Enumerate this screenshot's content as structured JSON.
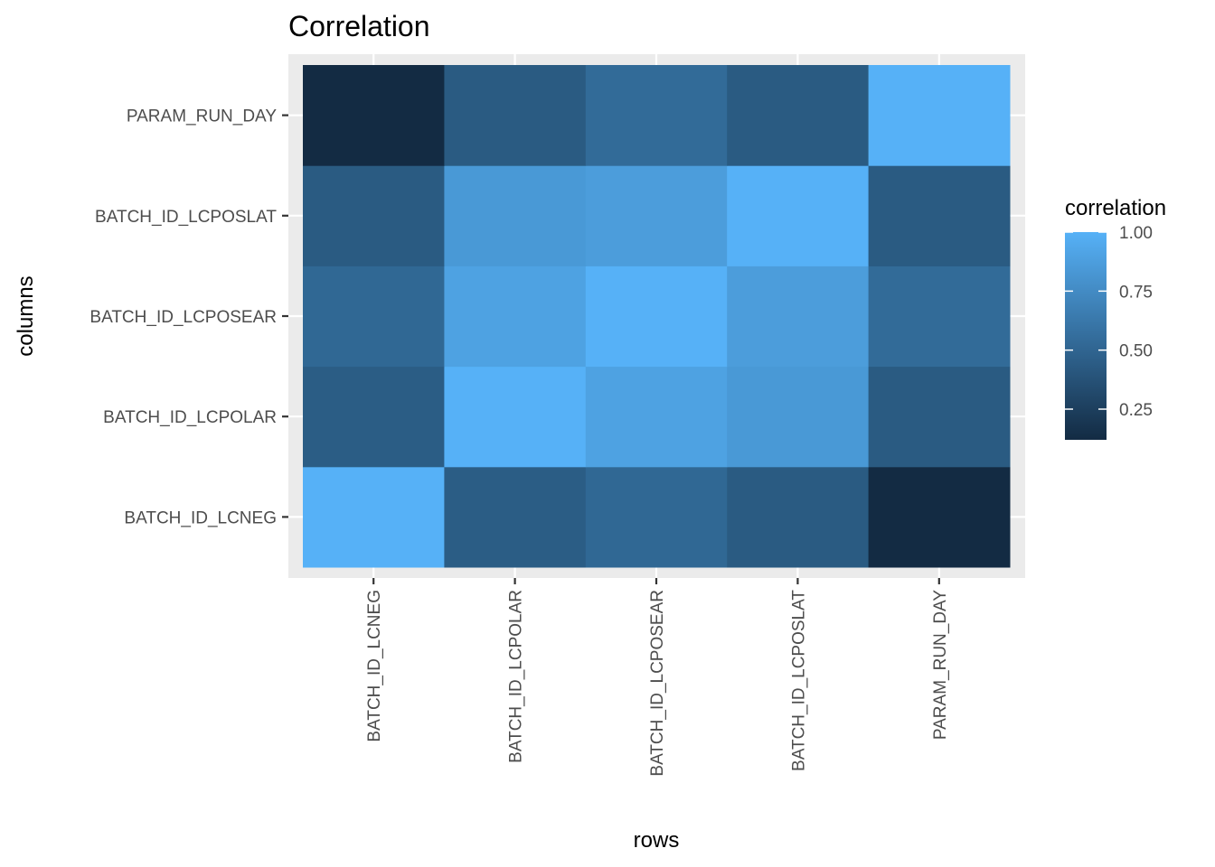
{
  "chart_data": {
    "type": "heatmap",
    "title": "Correlation",
    "xlabel": "rows",
    "ylabel": "columns",
    "x_categories": [
      "BATCH_ID_LCNEG",
      "BATCH_ID_LCPOLAR",
      "BATCH_ID_LCPOSEAR",
      "BATCH_ID_LCPOSLAT",
      "PARAM_RUN_DAY"
    ],
    "y_categories": [
      "BATCH_ID_LCNEG",
      "BATCH_ID_LCPOLAR",
      "BATCH_ID_LCPOSEAR",
      "BATCH_ID_LCPOSLAT",
      "PARAM_RUN_DAY"
    ],
    "values": [
      [
        1.0,
        0.3,
        0.36,
        0.29,
        0.12
      ],
      [
        0.3,
        1.0,
        0.83,
        0.74,
        0.29
      ],
      [
        0.36,
        0.83,
        1.0,
        0.78,
        0.38
      ],
      [
        0.29,
        0.74,
        0.78,
        1.0,
        0.29
      ],
      [
        0.12,
        0.29,
        0.38,
        0.29,
        1.0
      ]
    ],
    "legend": {
      "title": "correlation",
      "breaks": [
        0.25,
        0.5,
        0.75,
        1.0
      ],
      "break_labels": [
        "0.25",
        "0.50",
        "0.75",
        "1.00"
      ],
      "range": [
        0.12,
        1.0
      ],
      "low_color": "#132B43",
      "high_color": "#56B1F7",
      "placement": "right"
    },
    "panel_background": "#EBEBEB",
    "grid": true
  }
}
